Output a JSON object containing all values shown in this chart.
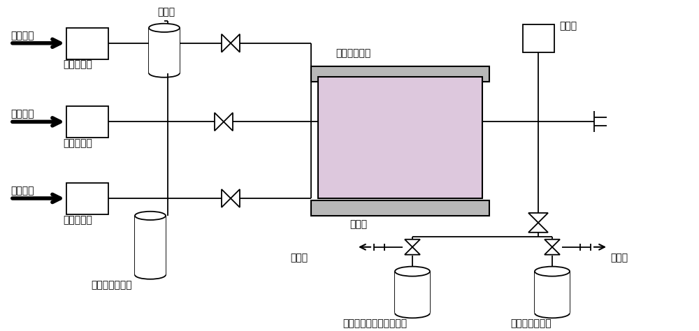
{
  "bg_color": "#ffffff",
  "line_color": "#000000",
  "reactor_fill": "#ddc8dd",
  "furnace_fill": "#b8b8b8",
  "labels": {
    "inert_gas": "惰性载气",
    "mass_flow": "质量流量计",
    "reductant": "还原剂",
    "fixed_bed": "固定床反应器",
    "pressure": "压力表",
    "furnace": "加热炉",
    "organometallic": "金属有机化合物",
    "vacuum_pump_left": "真空泵",
    "vacuum_pump_right": "真空泵",
    "cold_trap1": "回收金属有机化合物冷阱",
    "cold_trap2": "回收还原剂冷阱"
  }
}
